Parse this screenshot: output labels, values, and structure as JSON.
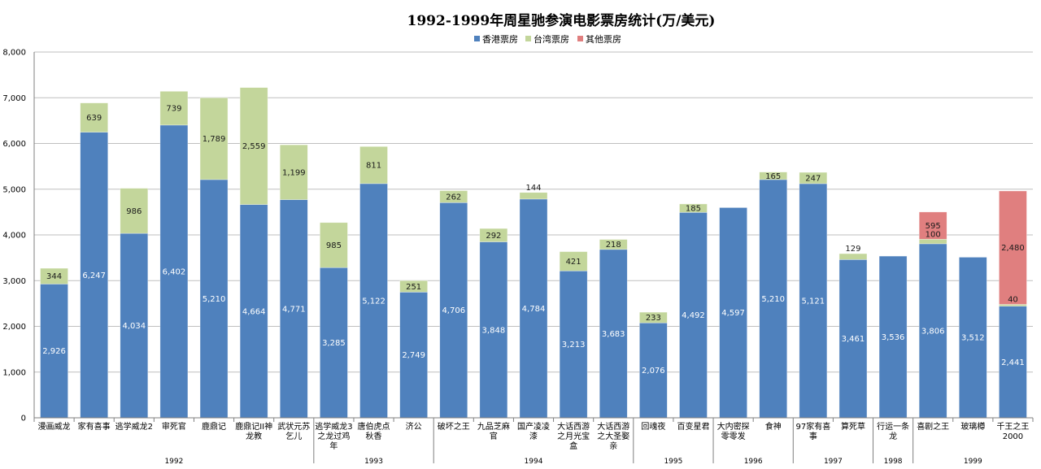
{
  "chart_data": {
    "type": "bar",
    "stacked": true,
    "title": "1992-1999年周星驰参演电影票房统计(万/美元)",
    "ylim": [
      0,
      8000
    ],
    "ytick_step": 1000,
    "ytick_labels": [
      "0",
      "1,000",
      "2,000",
      "3,000",
      "4,000",
      "5,000",
      "6,000",
      "7,000",
      "8,000"
    ],
    "grid": true,
    "legend_position": "top-center",
    "categories": [
      [
        "漫画威龙"
      ],
      [
        "家有喜事"
      ],
      [
        "逃学威龙2"
      ],
      [
        "审死官"
      ],
      [
        "鹿鼎记"
      ],
      [
        "鹿鼎记II神",
        "龙教"
      ],
      [
        "武状元苏",
        "乞儿"
      ],
      [
        "逃学威龙3",
        "之龙过鸡",
        "年"
      ],
      [
        "唐伯虎点",
        "秋香"
      ],
      [
        "济公"
      ],
      [
        "破坏之王"
      ],
      [
        "九品芝麻",
        "官"
      ],
      [
        "国产凌凌",
        "漆"
      ],
      [
        "大话西游",
        "之月光宝",
        "盒"
      ],
      [
        "大话西游",
        "之大圣娶",
        "亲"
      ],
      [
        "回魂夜"
      ],
      [
        "百变星君"
      ],
      [
        "大内密探",
        "零零发"
      ],
      [
        "食神"
      ],
      [
        "97家有喜",
        "事"
      ],
      [
        "算死草"
      ],
      [
        "行运一条",
        "龙"
      ],
      [
        "喜剧之王"
      ],
      [
        "玻璃樽"
      ],
      [
        "千王之王",
        "2000"
      ]
    ],
    "series": [
      {
        "name": "香港票房",
        "color": "#4f81bd",
        "values": [
          2926,
          6247,
          4034,
          6402,
          5210,
          4664,
          4771,
          3285,
          5122,
          2749,
          4706,
          3848,
          4784,
          3213,
          3683,
          2076,
          4492,
          4597,
          5210,
          5121,
          3461,
          3536,
          3806,
          3512,
          2441
        ],
        "labels": [
          "2,926",
          "6,247",
          "4,034",
          "6,402",
          "5,210",
          "4,664",
          "4,771",
          "3,285",
          "5,122",
          "2,749",
          "4,706",
          "3,848",
          "4,784",
          "3,213",
          "3,683",
          "2,076",
          "4,492",
          "4,597",
          "5,210",
          "5,121",
          "3,461",
          "3,536",
          "3,806",
          "3,512",
          "2,441"
        ]
      },
      {
        "name": "台湾票房",
        "color": "#c3d69b",
        "values": [
          344,
          639,
          986,
          739,
          1789,
          2559,
          1199,
          985,
          811,
          251,
          262,
          292,
          144,
          421,
          218,
          233,
          185,
          0,
          165,
          247,
          129,
          0,
          100,
          0,
          40
        ],
        "labels": [
          "344",
          "639",
          "986",
          "739",
          "1,789",
          "2,559",
          "1,199",
          "985",
          "811",
          "251",
          "262",
          "292",
          "144",
          "421",
          "218",
          "233",
          "185",
          "",
          "165",
          "247",
          "129",
          "",
          "100",
          "",
          "40"
        ]
      },
      {
        "name": "其他票房",
        "color": "#e07f7f",
        "values": [
          0,
          0,
          0,
          0,
          0,
          0,
          0,
          0,
          0,
          0,
          0,
          0,
          0,
          0,
          0,
          0,
          0,
          0,
          0,
          0,
          0,
          0,
          595,
          0,
          2480
        ],
        "labels": [
          "",
          "",
          "",
          "",
          "",
          "",
          "",
          "",
          "",
          "",
          "",
          "",
          "",
          "",
          "",
          "",
          "",
          "",
          "",
          "",
          "",
          "",
          "595",
          "",
          "2,480"
        ]
      }
    ],
    "year_groups": [
      {
        "label": "1992",
        "start": 0,
        "end": 6
      },
      {
        "label": "1993",
        "start": 7,
        "end": 9
      },
      {
        "label": "1994",
        "start": 10,
        "end": 14
      },
      {
        "label": "1995",
        "start": 15,
        "end": 16
      },
      {
        "label": "1996",
        "start": 17,
        "end": 18
      },
      {
        "label": "1997",
        "start": 19,
        "end": 20
      },
      {
        "label": "1998",
        "start": 21,
        "end": 21
      },
      {
        "label": "1999",
        "start": 22,
        "end": 24
      }
    ]
  }
}
